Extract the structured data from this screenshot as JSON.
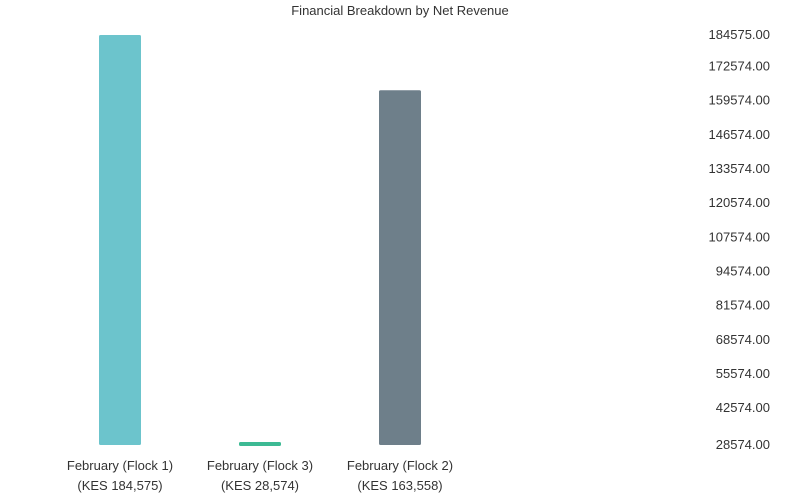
{
  "chart_data": {
    "type": "bar",
    "title": "Financial Breakdown by Net Revenue",
    "xlabel": "",
    "ylabel": "",
    "categories": [
      "February (Flock 1)",
      "February (Flock 3)",
      "February (Flock 2)"
    ],
    "sublabels": [
      "(KES 184,575)",
      "(KES 28,574)",
      "(KES 163,558)"
    ],
    "values": [
      184575,
      28574,
      163558
    ],
    "colors": [
      "#6cc4cc",
      "#3dba94",
      "#6e7f8a"
    ],
    "ylim": [
      28574,
      184575
    ],
    "yticks": [
      28574,
      42574,
      55574,
      68574,
      81574,
      94574,
      107574,
      120574,
      133574,
      146574,
      159574,
      172574,
      184575
    ],
    "ytick_labels": [
      "28574.00",
      "42574.00",
      "55574.00",
      "68574.00",
      "81574.00",
      "94574.00",
      "107574.00",
      "120574.00",
      "133574.00",
      "146574.00",
      "159574.00",
      "172574.00",
      "184575.00"
    ],
    "yaxis_side": "right",
    "grid": false,
    "legend": false
  }
}
